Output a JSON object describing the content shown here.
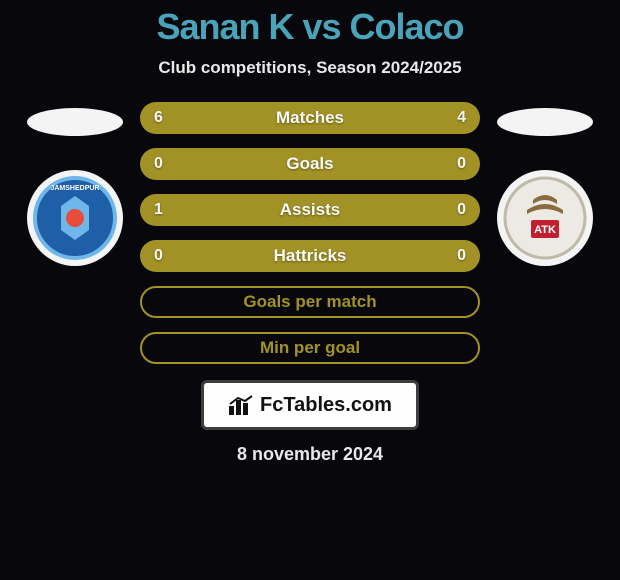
{
  "title": "Sanan K vs Colaco",
  "title_color": "#4aa3b8",
  "subtitle": "Club competitions, Season 2024/2025",
  "date": "8 november 2024",
  "fctables_text": "FcTables.com",
  "crest_left": {
    "bg": "#1f5fa8",
    "ring": "#6fb7ea",
    "label": "JAMSHEDPUR"
  },
  "crest_right": {
    "bg": "#e8e6df",
    "ring": "#d0cfc8",
    "label": "ATK"
  },
  "stat_rows": [
    {
      "left": "6",
      "label": "Matches",
      "right": "4",
      "style": "filled"
    },
    {
      "left": "0",
      "label": "Goals",
      "right": "0",
      "style": "filled"
    },
    {
      "left": "1",
      "label": "Assists",
      "right": "0",
      "style": "filled"
    },
    {
      "left": "0",
      "label": "Hattricks",
      "right": "0",
      "style": "filled"
    },
    {
      "left": "",
      "label": "Goals per match",
      "right": "",
      "style": "outline"
    },
    {
      "left": "",
      "label": "Min per goal",
      "right": "",
      "style": "outline"
    }
  ],
  "colors": {
    "row_fill": "#a29225",
    "row_border": "#a29225",
    "background": "#07070c",
    "text_light": "#e8e8e8"
  }
}
